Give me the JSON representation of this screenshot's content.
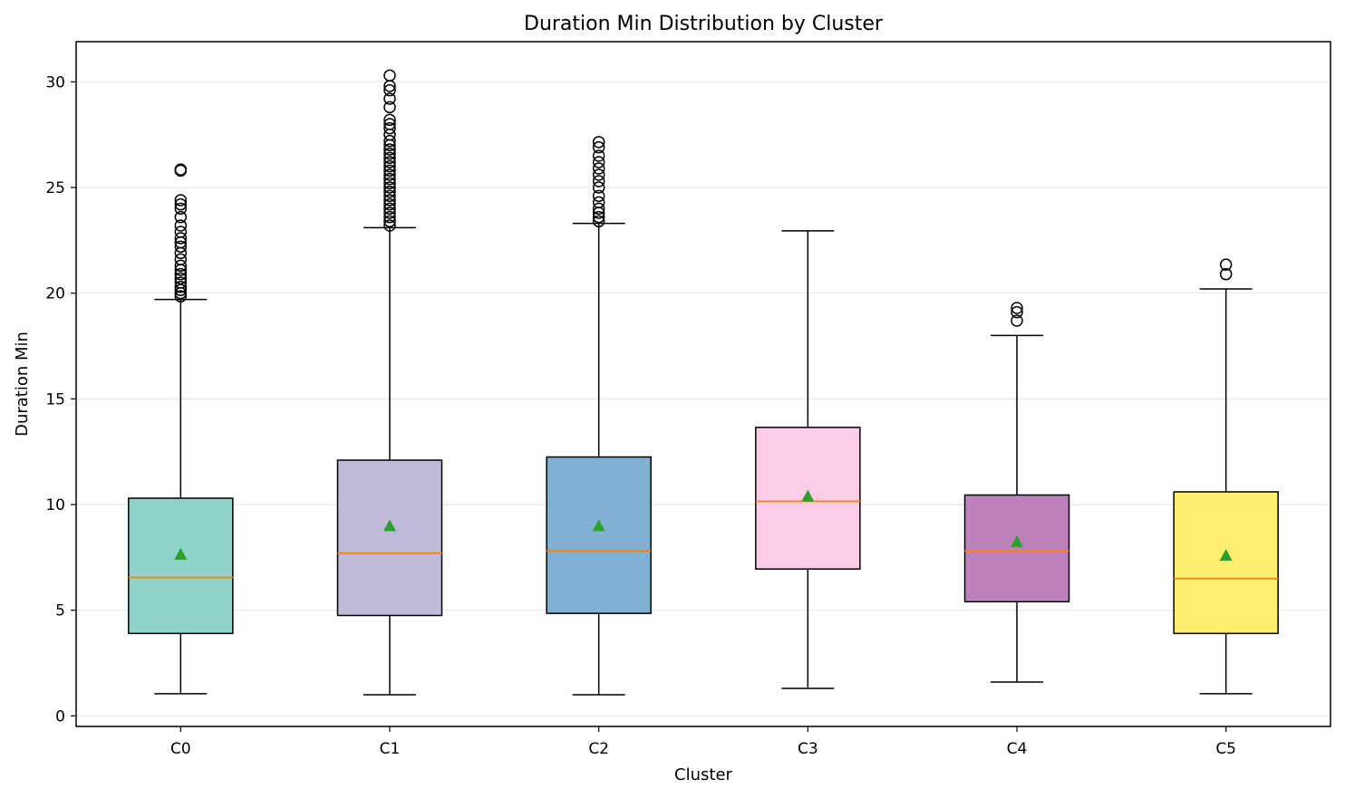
{
  "chart_data": {
    "type": "box",
    "title": "Duration Min Distribution by Cluster",
    "xlabel": "Cluster",
    "ylabel": "Duration Min",
    "ylim": [
      -0.5,
      31.9
    ],
    "yticks": [
      0,
      5,
      10,
      15,
      20,
      25,
      30
    ],
    "grid": "y",
    "categories": [
      "C0",
      "C1",
      "C2",
      "C3",
      "C4",
      "C5"
    ],
    "series": [
      {
        "category": "C0",
        "color": "#8dd3c7",
        "whisker_low": 1.05,
        "q1": 3.9,
        "median": 6.55,
        "mean": 7.65,
        "q3": 10.3,
        "whisker_high": 19.7,
        "outliers": [
          19.85,
          20.0,
          20.15,
          20.3,
          20.5,
          20.7,
          20.9,
          21.1,
          21.3,
          21.6,
          21.9,
          22.2,
          22.4,
          22.6,
          22.9,
          23.2,
          23.6,
          24.0,
          24.2,
          24.4,
          25.8,
          25.85
        ]
      },
      {
        "category": "C1",
        "color": "#bebada",
        "whisker_low": 1.0,
        "q1": 4.75,
        "median": 7.7,
        "mean": 9.0,
        "q3": 12.1,
        "whisker_high": 23.1,
        "outliers": [
          23.2,
          23.4,
          23.6,
          23.8,
          24.0,
          24.2,
          24.4,
          24.6,
          24.8,
          25.0,
          25.2,
          25.4,
          25.6,
          25.8,
          26.0,
          26.2,
          26.4,
          26.6,
          26.8,
          27.0,
          27.2,
          27.5,
          27.8,
          28.0,
          28.2,
          28.8,
          29.2,
          29.6,
          29.8,
          30.3
        ]
      },
      {
        "category": "C2",
        "color": "#80b1d3",
        "whisker_low": 1.0,
        "q1": 4.85,
        "median": 7.8,
        "mean": 9.0,
        "q3": 12.25,
        "whisker_high": 23.3,
        "outliers": [
          23.4,
          23.6,
          23.8,
          24.0,
          24.3,
          24.6,
          25.0,
          25.3,
          25.6,
          25.9,
          26.2,
          26.5,
          26.9,
          27.15
        ]
      },
      {
        "category": "C3",
        "color": "#fccde5",
        "whisker_low": 1.3,
        "q1": 6.95,
        "median": 10.15,
        "mean": 10.4,
        "q3": 13.65,
        "whisker_high": 22.95,
        "outliers": []
      },
      {
        "category": "C4",
        "color": "#bc80bd",
        "whisker_low": 1.6,
        "q1": 5.4,
        "median": 7.8,
        "mean": 8.25,
        "q3": 10.45,
        "whisker_high": 18.0,
        "outliers": [
          18.7,
          19.1,
          19.3
        ]
      },
      {
        "category": "C5",
        "color": "#ffed6f",
        "whisker_low": 1.05,
        "q1": 3.9,
        "median": 6.5,
        "mean": 7.6,
        "q3": 10.6,
        "whisker_high": 20.2,
        "outliers": [
          20.9,
          21.35
        ]
      }
    ],
    "median_color": "#ff7f0e",
    "mean_color": "#2ca02c"
  }
}
